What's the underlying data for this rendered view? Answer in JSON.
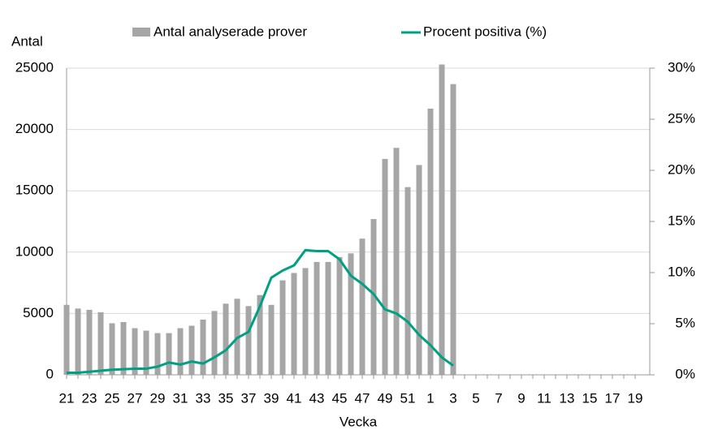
{
  "chart_data": {
    "type": "bar",
    "y_axis_title": "Antal",
    "x_axis_title": "Vecka",
    "categories": [
      "21",
      null,
      "23",
      null,
      "25",
      null,
      "27",
      null,
      "29",
      null,
      "31",
      null,
      "33",
      null,
      "35",
      null,
      "37",
      null,
      "39",
      null,
      "41",
      null,
      "43",
      null,
      "45",
      null,
      "47",
      null,
      "49",
      null,
      "51",
      null,
      "1",
      null,
      "3",
      null,
      "5",
      null,
      "7",
      null,
      "9",
      null,
      "11",
      null,
      "13",
      null,
      "15",
      null,
      "17",
      null,
      "19"
    ],
    "series": [
      {
        "name": "Antal analyserade prover",
        "type": "bar",
        "color": "#a6a6a6",
        "values": [
          5700,
          5400,
          5300,
          5100,
          4200,
          4300,
          3800,
          3600,
          3400,
          3400,
          3800,
          4000,
          4500,
          5200,
          5800,
          6200,
          5600,
          6500,
          5700,
          7700,
          8300,
          8700,
          9200,
          9200,
          9600,
          9900,
          11100,
          12700,
          17600,
          18500,
          15300,
          17100,
          21700,
          25300,
          23700,
          null,
          null,
          null,
          null,
          null,
          null,
          null,
          null,
          null,
          null,
          null,
          null,
          null,
          null,
          null,
          null
        ]
      },
      {
        "name": "Procent positiva (%)",
        "type": "line",
        "axis": "y2",
        "color": "#00a082",
        "values": [
          0.2,
          0.2,
          0.3,
          0.4,
          0.5,
          0.55,
          0.6,
          0.6,
          0.8,
          1.2,
          1.0,
          1.3,
          1.1,
          1.7,
          2.4,
          3.6,
          4.2,
          6.7,
          9.5,
          10.2,
          10.7,
          12.2,
          12.1,
          12.1,
          11.3,
          9.7,
          8.9,
          7.9,
          6.4,
          6.0,
          5.2,
          3.9,
          2.9,
          1.7,
          0.9,
          null,
          null,
          null,
          null,
          null,
          null,
          null,
          null,
          null,
          null,
          null,
          null,
          null,
          null,
          null,
          null
        ]
      }
    ],
    "ylim": [
      0,
      25000
    ],
    "yticks": [
      0,
      5000,
      10000,
      15000,
      20000,
      25000
    ],
    "y2lim": [
      0,
      30
    ],
    "y2ticks": [
      {
        "value": 0,
        "label": "0%"
      },
      {
        "value": 5,
        "label": "5%"
      },
      {
        "value": 10,
        "label": "10%"
      },
      {
        "value": 15,
        "label": "15%"
      },
      {
        "value": 20,
        "label": "20%"
      },
      {
        "value": 25,
        "label": "25%"
      },
      {
        "value": 30,
        "label": "30%"
      }
    ],
    "grid": true,
    "legend": "top"
  }
}
